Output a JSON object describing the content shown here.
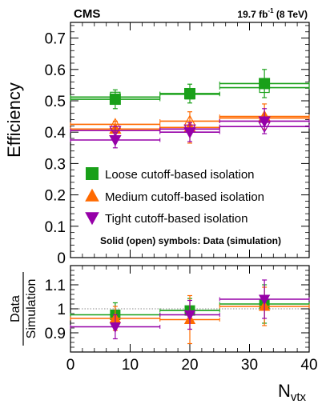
{
  "chart_data": [
    {
      "type": "scatter",
      "header_left": "CMS",
      "header_right_pre": "19.7 fb",
      "header_right_sup": "-1",
      "header_right_post": " (8 TeV)",
      "ylabel": "Efficiency",
      "ylim": [
        0,
        0.75
      ],
      "yticks": [
        0,
        0.1,
        0.2,
        0.3,
        0.4,
        0.5,
        0.6,
        0.7
      ],
      "ytick_labels": [
        "0",
        "0.1",
        "0.2",
        "0.3",
        "0.4",
        "0.5",
        "0.6",
        "0.7"
      ],
      "x_bins": [
        [
          0,
          15
        ],
        [
          15,
          25
        ],
        [
          25,
          40
        ]
      ],
      "x_centers": [
        7.5,
        20,
        32.5
      ],
      "note": "Solid (open) symbols: Data (simulation)",
      "series": [
        {
          "name": "Loose cutoff-based isolation",
          "marker": "square",
          "color": "#19a019",
          "data": [
            0.505,
            0.523,
            0.555
          ],
          "data_err": [
            0.03,
            0.03,
            0.045
          ],
          "simulation": [
            0.512,
            0.521,
            0.542
          ],
          "simulation_err": [
            0.01,
            0.008,
            0.012
          ]
        },
        {
          "name": "Medium cutoff-based isolation",
          "marker": "triangle-up",
          "color": "#ff6a00",
          "data": [
            0.41,
            0.415,
            0.45
          ],
          "data_err": [
            0.025,
            0.05,
            0.04
          ],
          "simulation": [
            0.425,
            0.435,
            0.445
          ],
          "simulation_err": [
            0.01,
            0.01,
            0.01
          ]
        },
        {
          "name": "Tight cutoff-based isolation",
          "marker": "triangle-down",
          "color": "#9600a8",
          "data": [
            0.375,
            0.4,
            0.435
          ],
          "data_err": [
            0.025,
            0.03,
            0.04
          ],
          "simulation": [
            0.405,
            0.41,
            0.418
          ],
          "simulation_err": [
            0.01,
            0.01,
            0.01
          ]
        }
      ]
    },
    {
      "type": "scatter",
      "ylabel_top": "Data",
      "ylabel_bottom": "Simulation",
      "xlabel_main": "N",
      "xlabel_sub": "vtx",
      "xlim": [
        0,
        40
      ],
      "xticks": [
        0,
        10,
        20,
        30,
        40
      ],
      "xtick_labels": [
        "0",
        "10",
        "20",
        "30",
        "40"
      ],
      "ylim": [
        0.82,
        1.18
      ],
      "yticks": [
        0.9,
        1.0,
        1.1
      ],
      "ytick_labels": [
        "0.9",
        "1",
        "1.1"
      ],
      "reference_line": 1,
      "series": [
        {
          "name": "Loose cutoff-based isolation",
          "values": [
            0.975,
            0.993,
            1.02
          ],
          "errors": [
            0.05,
            0.05,
            0.08
          ]
        },
        {
          "name": "Medium cutoff-based isolation",
          "values": [
            0.96,
            0.955,
            1.01
          ],
          "errors": [
            0.05,
            0.1,
            0.08
          ]
        },
        {
          "name": "Tight cutoff-based isolation",
          "values": [
            0.925,
            0.975,
            1.04
          ],
          "errors": [
            0.05,
            0.06,
            0.08
          ]
        }
      ]
    }
  ]
}
